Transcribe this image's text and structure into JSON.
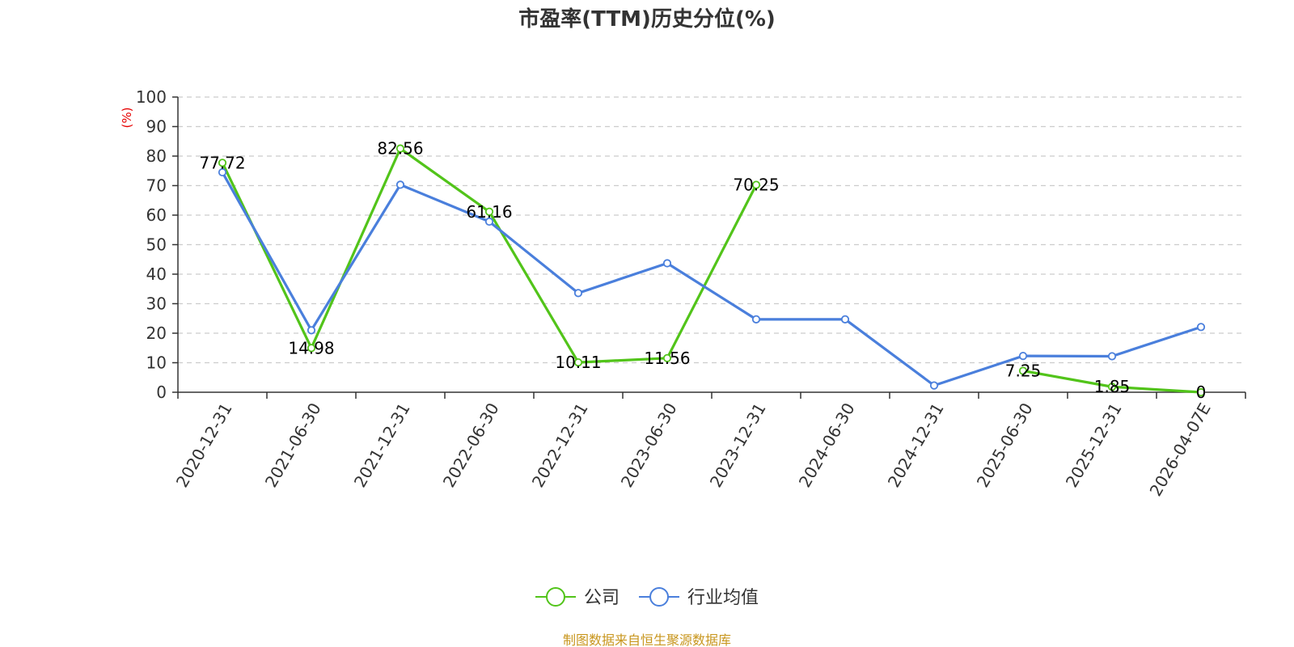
{
  "chart_data": {
    "type": "line",
    "title": "市盈率(TTM)历史分位(%)",
    "ylabel": "(%)",
    "ylim": [
      0,
      100
    ],
    "yticks": [
      0,
      10,
      20,
      30,
      40,
      50,
      60,
      70,
      80,
      90,
      100
    ],
    "categories": [
      "2020-12-31",
      "2021-06-30",
      "2021-12-31",
      "2022-06-30",
      "2022-12-31",
      "2023-06-30",
      "2023-12-31",
      "2024-06-30",
      "2024-12-31",
      "2025-06-30",
      "2025-12-31",
      "2026-04-07E"
    ],
    "grid": true,
    "legend_position": "bottom",
    "series": [
      {
        "name": "公司",
        "color": "#52c41a",
        "values": [
          77.72,
          14.98,
          82.56,
          61.16,
          10.11,
          11.56,
          70.25,
          null,
          null,
          7.25,
          1.85,
          0
        ],
        "data_labels": [
          "77.72",
          "14.98",
          "82.56",
          "61.16",
          "10.11",
          "11.56",
          "70.25",
          "",
          "",
          "7.25",
          "1.85",
          "0"
        ]
      },
      {
        "name": "行业均值",
        "color": "#4a7fdc",
        "values": [
          74.5,
          21.0,
          70.3,
          57.8,
          33.6,
          43.7,
          24.7,
          24.7,
          2.3,
          12.3,
          12.2,
          22.1
        ]
      }
    ],
    "source": "制图数据来自恒生聚源数据库",
    "ylabel_color": "#e60000",
    "source_color": "#c8961e"
  }
}
